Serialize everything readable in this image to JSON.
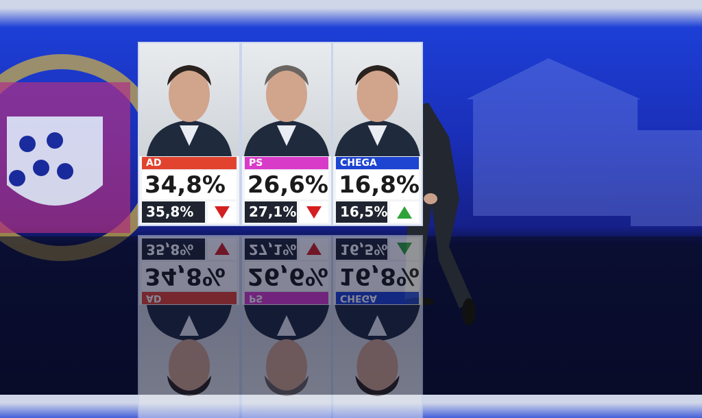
{
  "board": {
    "candidates": [
      {
        "party": "AD",
        "result": "34,8%",
        "previous": "35,8%"
      },
      {
        "party": "PS",
        "result": "26,6%",
        "previous": "27,1%"
      },
      {
        "party": "CHEGA",
        "result": "16,8%",
        "previous": "16,5%"
      }
    ]
  }
}
